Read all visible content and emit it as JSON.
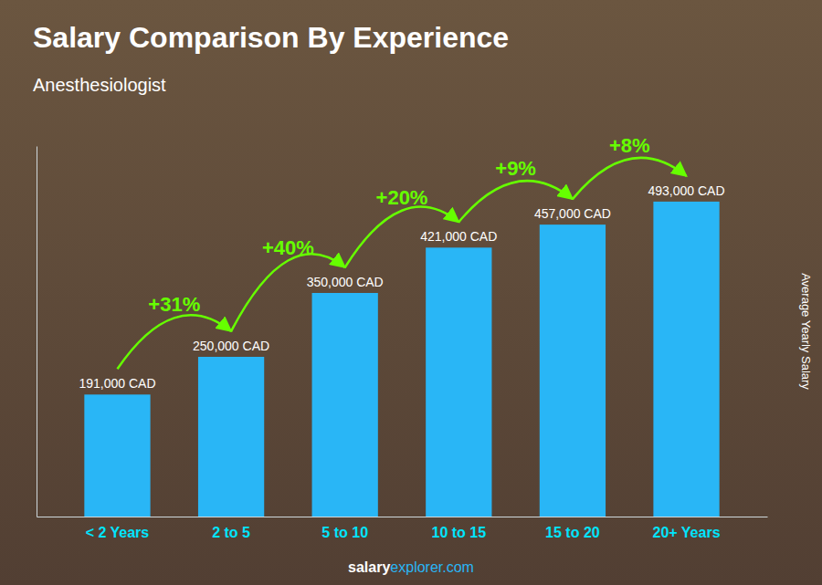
{
  "chart_data": {
    "type": "bar",
    "title": "Salary Comparison By Experience",
    "subtitle": "Anesthesiologist",
    "ylabel": "Average Yearly Salary",
    "categories": [
      "< 2 Years",
      "2 to 5",
      "5 to 10",
      "10 to 15",
      "15 to 20",
      "20+ Years"
    ],
    "values": [
      191000,
      250000,
      350000,
      421000,
      457000,
      493000
    ],
    "value_labels": [
      "191,000 CAD",
      "250,000 CAD",
      "350,000 CAD",
      "421,000 CAD",
      "457,000 CAD",
      "493,000 CAD"
    ],
    "data_labels": true,
    "color": "#29b6f6",
    "ylim": [
      0,
      580000
    ],
    "tick_labels": "x",
    "annotations": [
      {
        "text": "+31%",
        "from": "< 2 Years",
        "to": "2 to 5",
        "color": "#66ff00"
      },
      {
        "text": "+40%",
        "from": "2 to 5",
        "to": "5 to 10",
        "color": "#66ff00"
      },
      {
        "text": "+20%",
        "from": "5 to 10",
        "to": "10 to 15",
        "color": "#66ff00"
      },
      {
        "text": "+9%",
        "from": "10 to 15",
        "to": "15 to 20",
        "color": "#66ff00"
      },
      {
        "text": "+8%",
        "from": "15 to 20",
        "to": "20+ Years",
        "color": "#66ff00"
      },
      {
        "text": "salary"
      },
      {
        "text": "explorer.com"
      }
    ]
  }
}
